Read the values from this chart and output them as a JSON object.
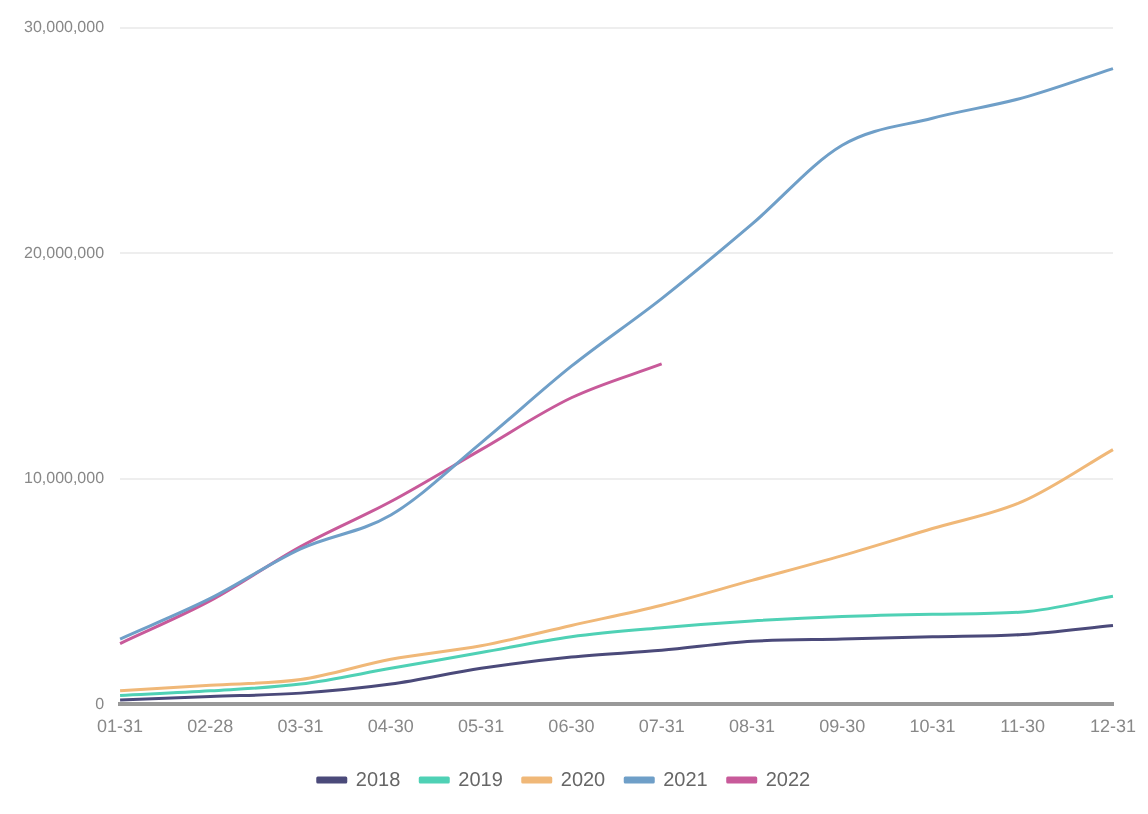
{
  "chart_data": {
    "type": "line",
    "categories": [
      "01-31",
      "02-28",
      "03-31",
      "04-30",
      "05-31",
      "06-30",
      "07-31",
      "08-31",
      "09-30",
      "10-31",
      "11-30",
      "12-31"
    ],
    "series": [
      {
        "name": "2018",
        "color": "#4b4a7a",
        "values": [
          200000,
          350000,
          500000,
          900000,
          1600000,
          2100000,
          2400000,
          2800000,
          2900000,
          3000000,
          3100000,
          3500000
        ]
      },
      {
        "name": "2019",
        "color": "#4fd1b5",
        "values": [
          400000,
          600000,
          900000,
          1600000,
          2300000,
          3000000,
          3400000,
          3700000,
          3900000,
          4000000,
          4100000,
          4800000
        ]
      },
      {
        "name": "2020",
        "color": "#f0b878",
        "values": [
          600000,
          850000,
          1100000,
          2000000,
          2600000,
          3500000,
          4400000,
          5500000,
          6600000,
          7800000,
          9000000,
          11300000
        ]
      },
      {
        "name": "2021",
        "color": "#6f9fc8",
        "values": [
          2900000,
          4700000,
          6900000,
          8400000,
          11600000,
          15000000,
          18000000,
          21300000,
          24800000,
          26000000,
          26900000,
          28200000
        ]
      },
      {
        "name": "2022",
        "color": "#c85a9a",
        "values": [
          2700000,
          4600000,
          7000000,
          9000000,
          11300000,
          13600000,
          15100000,
          null,
          null,
          null,
          null,
          null
        ]
      }
    ],
    "ylim": [
      0,
      30000000
    ],
    "yticks": [
      {
        "value": 0,
        "label": "0"
      },
      {
        "value": 10000000,
        "label": "10,000,000"
      },
      {
        "value": 20000000,
        "label": "20,000,000"
      },
      {
        "value": 30000000,
        "label": "30,000,000"
      }
    ],
    "grid": "y",
    "legend": "bottom",
    "marker": "none",
    "line_style": "solid"
  }
}
